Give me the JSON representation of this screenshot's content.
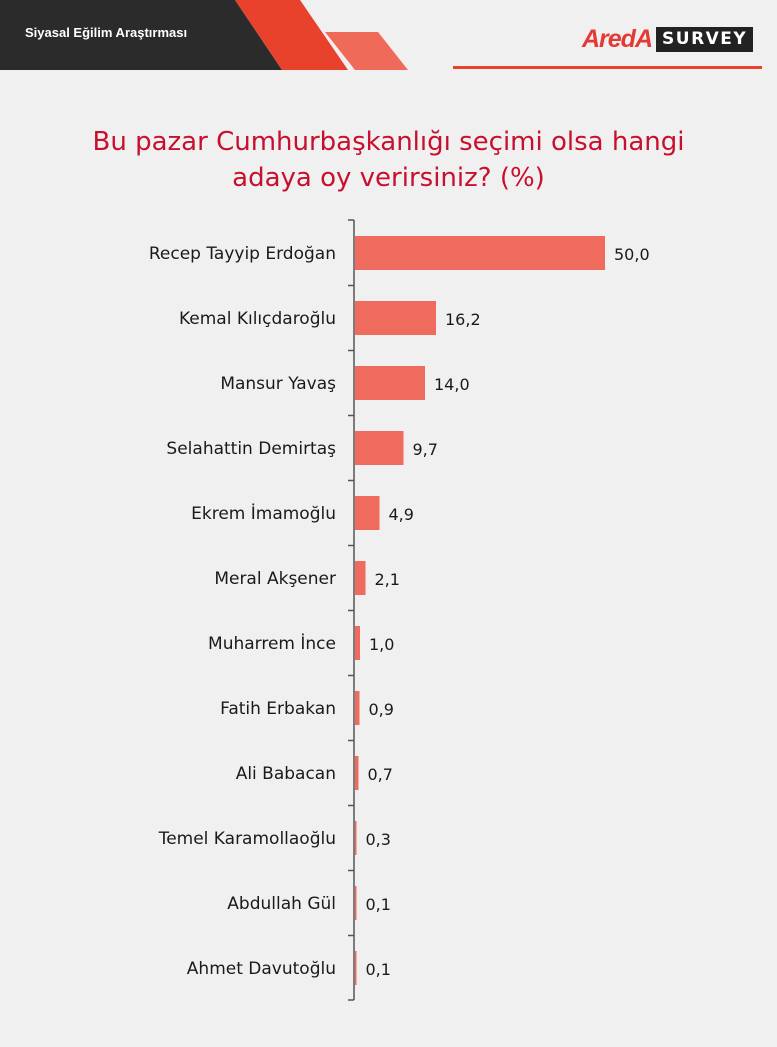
{
  "header": {
    "survey_name": "Siyasal Eğilim Araştırması",
    "brand": "AredA",
    "brand_suffix": "SURVEY",
    "colors": {
      "dark": "#2b2b2b",
      "accent": "#e8412c",
      "accent_light": "#f06a5a"
    }
  },
  "chart_data": {
    "type": "bar",
    "orientation": "horizontal",
    "title_lines": [
      "Bu pazar Cumhurbaşkanlığı seçimi olsa hangi",
      "adaya oy verirsiniz? (%)"
    ],
    "categories": [
      "Recep Tayyip Erdoğan",
      "Kemal Kılıçdaroğlu",
      "Mansur Yavaş",
      "Selahattin Demirtaş",
      "Ekrem İmamoğlu",
      "Meral Akşener",
      "Muharrem İnce",
      "Fatih Erbakan",
      "Ali Babacan",
      "Temel Karamollaoğlu",
      "Abdullah Gül",
      "Ahmet Davutoğlu"
    ],
    "values": [
      50.0,
      16.2,
      14.0,
      9.7,
      4.9,
      2.1,
      1.0,
      0.9,
      0.7,
      0.3,
      0.1,
      0.1
    ],
    "value_labels": [
      "50,0",
      "16,2",
      "14,0",
      "9,7",
      "4,9",
      "2,1",
      "1,0",
      "0,9",
      "0,7",
      "0,3",
      "0,1",
      "0,1"
    ],
    "xlim": [
      0,
      50
    ],
    "grid": false,
    "bar_color": "#ee6b5e"
  }
}
